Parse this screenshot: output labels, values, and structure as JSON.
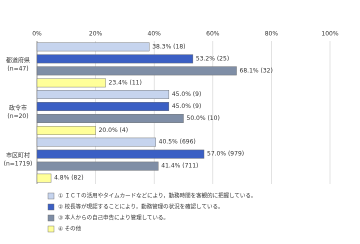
{
  "chart_data": {
    "type": "bar",
    "orientation": "horizontal",
    "categories": [
      [
        "都道府県",
        "(n=47)"
      ],
      [
        "政令市",
        "(n=20)"
      ],
      [
        "市区町村",
        "(n=1719)"
      ]
    ],
    "series": [
      {
        "name": "① ＩＣＴの活用やタイムカードなどにより，勤務時間を客観的に把握している。",
        "color": "#c6d4ee",
        "values": [
          38.3,
          45.0,
          40.5
        ],
        "value_labels": [
          "38.3% (18)",
          "45.0% (9)",
          "40.5% (696)"
        ]
      },
      {
        "name": "② 校長等が現認することにより，勤務管理の状況を確認している。",
        "color": "#3b5fc4",
        "values": [
          53.2,
          45.0,
          57.0
        ],
        "value_labels": [
          "53.2% (25)",
          "45.0% (9)",
          "57.0% (979)"
        ]
      },
      {
        "name": "③ 本人からの自己申告により管理している。",
        "color": "#7f8ea6",
        "values": [
          68.1,
          50.0,
          41.4
        ],
        "value_labels": [
          "68.1% (32)",
          "50.0% (10)",
          "41.4% (711)"
        ]
      },
      {
        "name": "④ その他",
        "color": "#ffff99",
        "values": [
          23.4,
          20.0,
          4.8
        ],
        "value_labels": [
          "23.4% (11)",
          "20.0% (4)",
          "4.8% (82)"
        ]
      }
    ],
    "xlim": [
      0,
      100
    ],
    "xticks": [
      {
        "value": 0,
        "label": "0%"
      },
      {
        "value": 20,
        "label": "20%"
      },
      {
        "value": 40,
        "label": "40%"
      },
      {
        "value": 60,
        "label": "60%"
      },
      {
        "value": 80,
        "label": "80%"
      },
      {
        "value": 100,
        "label": "100%"
      }
    ],
    "grid": true
  }
}
